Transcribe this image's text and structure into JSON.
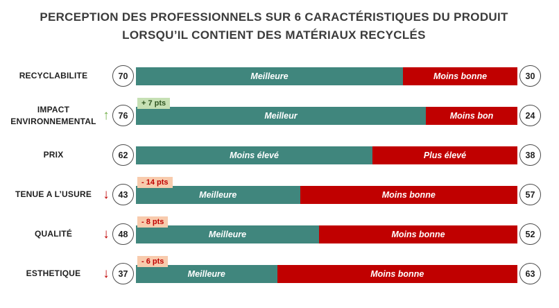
{
  "title": {
    "line1": "PERCEPTION DES PROFESSIONNELS SUR 6 CARACTÉRISTIQUES DU PRODUIT",
    "line2": "LORSQU’IL CONTIENT DES MATÉRIAUX RECYCLÉS"
  },
  "icons": {
    "trend_up": "↑",
    "trend_down": "↓"
  },
  "colors": {
    "positive_bar": "#40867D",
    "negative_bar": "#C00000",
    "badge_up_bg": "#C6E0B4",
    "badge_down_bg": "#F8CBAD",
    "title_text": "#3B3B3B",
    "arrow_up": "#70AD47",
    "arrow_down": "#C00000"
  },
  "chart_data": {
    "type": "bar",
    "orientation": "horizontal-stacked",
    "title": "PERCEPTION DES PROFESSIONNELS SUR 6 CARACTÉRISTIQUES DU PRODUIT LORSQU’IL CONTIENT DES MATÉRIAUX RECYCLÉS",
    "value_range": [
      0,
      100
    ],
    "legend": "none",
    "rows": [
      {
        "label": "RECYCLABILITE",
        "left_value": 70,
        "right_value": 30,
        "left_label": "Meilleure",
        "right_label": "Moins bonne",
        "trend": null,
        "change": null
      },
      {
        "label": "IMPACT ENVIRONNEMENTAL",
        "left_value": 76,
        "right_value": 24,
        "left_label": "Meilleur",
        "right_label": "Moins bon",
        "trend": "up",
        "change": "+ 7 pts"
      },
      {
        "label": "PRIX",
        "left_value": 62,
        "right_value": 38,
        "left_label": "Moins élevé",
        "right_label": "Plus élevé",
        "trend": null,
        "change": null
      },
      {
        "label": "TENUE A L’USURE",
        "left_value": 43,
        "right_value": 57,
        "left_label": "Meilleure",
        "right_label": "Moins bonne",
        "trend": "down",
        "change": "- 14 pts"
      },
      {
        "label": "QUALITÉ",
        "left_value": 48,
        "right_value": 52,
        "left_label": "Meilleure",
        "right_label": "Moins bonne",
        "trend": "down",
        "change": "- 8 pts"
      },
      {
        "label": "ESTHETIQUE",
        "left_value": 37,
        "right_value": 63,
        "left_label": "Meilleure",
        "right_label": "Moins bonne",
        "trend": "down",
        "change": "- 6 pts"
      }
    ]
  }
}
